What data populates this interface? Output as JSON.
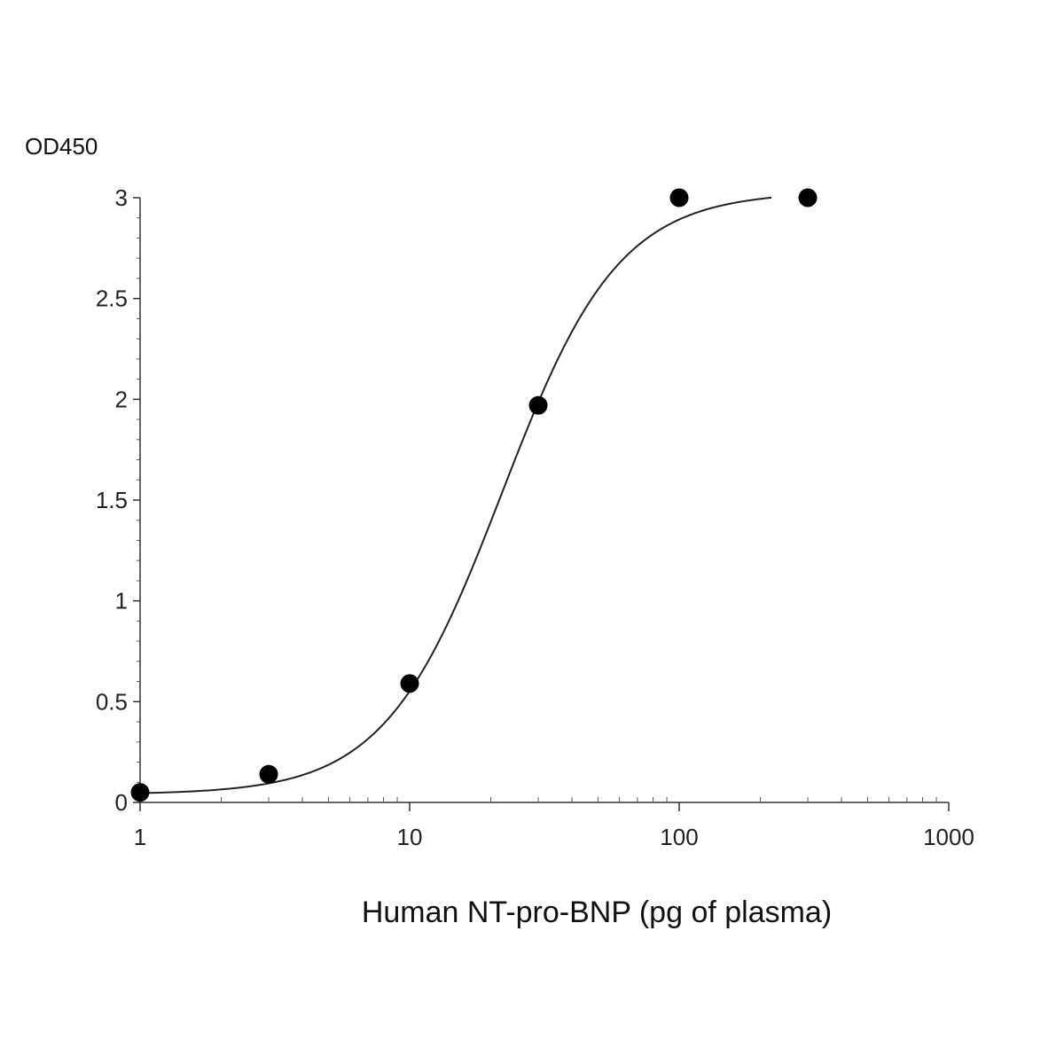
{
  "chart_data": {
    "type": "scatter",
    "ylabel": "OD450",
    "xlabel": "Human NT-pro-BNP (pg of plasma)",
    "x_scale": "log",
    "xlim": [
      1,
      1000
    ],
    "ylim": [
      0,
      3
    ],
    "x_ticks": [
      1,
      10,
      100,
      1000
    ],
    "x_tick_labels": [
      "1",
      "10",
      "100",
      "1000"
    ],
    "y_ticks": [
      0,
      0.5,
      1,
      1.5,
      2,
      2.5,
      3
    ],
    "y_tick_labels": [
      "0",
      "0.5",
      "1",
      "1.5",
      "2",
      "2.5",
      "3"
    ],
    "grid": false,
    "series": [
      {
        "points": [
          {
            "x": 1,
            "y": 0.05
          },
          {
            "x": 3,
            "y": 0.14
          },
          {
            "x": 10,
            "y": 0.59
          },
          {
            "x": 30,
            "y": 1.97
          },
          {
            "x": 100,
            "y": 3.0
          },
          {
            "x": 300,
            "y": 3.0
          }
        ],
        "marker_color": "#000000"
      }
    ],
    "fit_curve": {
      "model": "4PL",
      "bottom": 0.04,
      "top": 3.03,
      "ec50": 22,
      "hill": 2.0,
      "x_range": [
        1,
        220
      ],
      "color": "#222222"
    }
  }
}
